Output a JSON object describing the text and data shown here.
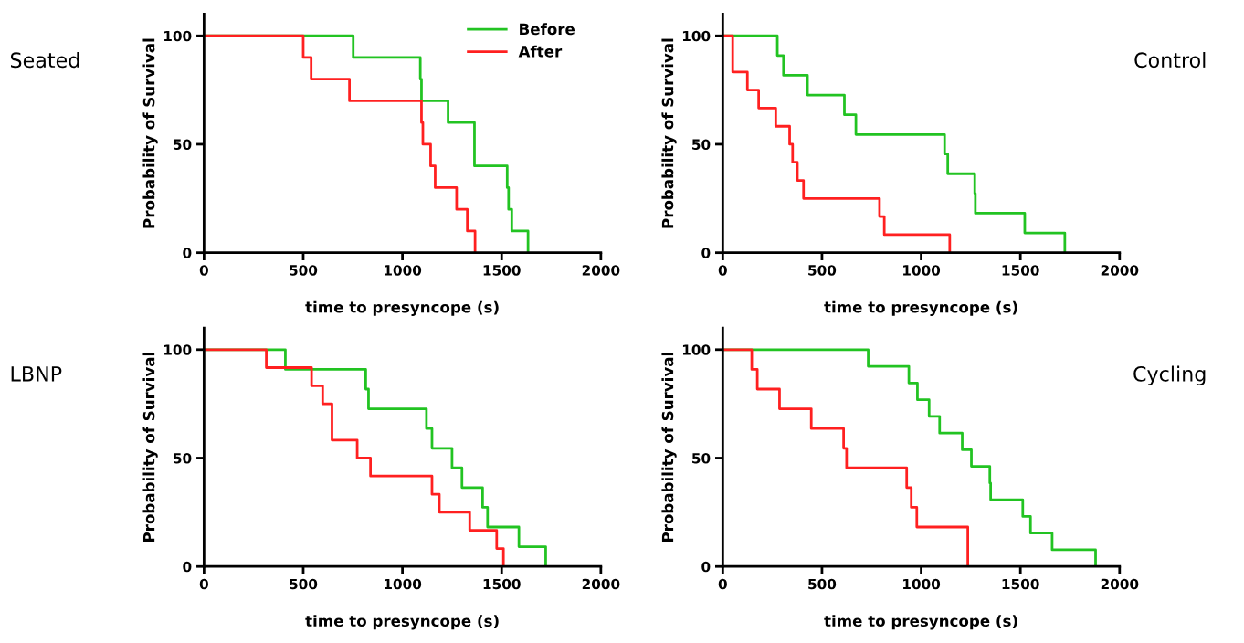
{
  "chart_data": [
    {
      "type": "step",
      "title": "Seated",
      "xlabel": "time to presyncope (s)",
      "ylabel": "Probability of Survival",
      "xlim": [
        0,
        2000
      ],
      "xticks": [
        0,
        500,
        1000,
        1500,
        2000
      ],
      "ylim": [
        0,
        110
      ],
      "yticks": [
        0,
        50,
        100
      ],
      "legend": "top right",
      "grid": false,
      "series": [
        {
          "name": "Before",
          "color": "#22c322",
          "x": [
            0,
            752,
            1090,
            1096,
            1230,
            1363,
            1528,
            1535,
            1551,
            1633
          ],
          "values": [
            100,
            90,
            80,
            70,
            60,
            40,
            30,
            20,
            10,
            0
          ]
        },
        {
          "name": "After",
          "color": "#ff2020",
          "x": [
            0,
            500,
            540,
            733,
            1096,
            1103,
            1142,
            1165,
            1273,
            1327,
            1366
          ],
          "values": [
            100,
            90,
            80,
            70,
            60,
            50,
            40,
            30,
            20,
            10,
            0
          ]
        }
      ]
    },
    {
      "type": "step",
      "title": "Control",
      "xlabel": "time to presyncope (s)",
      "ylabel": "Probability of Survival",
      "xlim": [
        0,
        2000
      ],
      "xticks": [
        0,
        500,
        1000,
        1500,
        2000
      ],
      "ylim": [
        0,
        110
      ],
      "yticks": [
        0,
        50,
        100
      ],
      "grid": false,
      "series": [
        {
          "color": "#22c322",
          "x": [
            0,
            275,
            306,
            427,
            613,
            671,
            1118,
            1134,
            1270,
            1273,
            1522,
            1724
          ],
          "values": [
            100,
            90.9,
            81.8,
            72.7,
            63.6,
            54.5,
            45.5,
            36.4,
            27.3,
            18.2,
            9.1,
            0
          ]
        },
        {
          "color": "#ff2020",
          "x": [
            0,
            50,
            124,
            181,
            267,
            337,
            352,
            376,
            407,
            790,
            814,
            1144
          ],
          "values": [
            100,
            83.3,
            75,
            66.7,
            58.3,
            50,
            41.7,
            33.3,
            25,
            16.7,
            8.3,
            0
          ]
        }
      ]
    },
    {
      "type": "step",
      "title": "LBNP",
      "xlabel": "time to presyncope (s)",
      "ylabel": "Probability of Survival",
      "xlim": [
        0,
        2000
      ],
      "xticks": [
        0,
        500,
        1000,
        1500,
        2000
      ],
      "ylim": [
        0,
        110
      ],
      "yticks": [
        0,
        50,
        100
      ],
      "grid": false,
      "series": [
        {
          "color": "#22c322",
          "x": [
            0,
            410,
            815,
            829,
            1121,
            1149,
            1250,
            1300,
            1404,
            1429,
            1587,
            1722
          ],
          "values": [
            100,
            90.9,
            81.8,
            72.7,
            63.6,
            54.5,
            45.5,
            36.4,
            27.3,
            18.2,
            9.1,
            0
          ]
        },
        {
          "color": "#ff2020",
          "x": [
            0,
            314,
            542,
            598,
            645,
            772,
            839,
            1149,
            1186,
            1339,
            1475,
            1509
          ],
          "values": [
            100,
            91.7,
            83.3,
            75,
            58.3,
            50,
            41.7,
            33.3,
            25,
            16.7,
            8.3,
            0
          ]
        }
      ]
    },
    {
      "type": "step",
      "title": "Cycling",
      "xlabel": "time to presyncope (s)",
      "ylabel": "Probability of Survival",
      "xlim": [
        0,
        2000
      ],
      "xticks": [
        0,
        500,
        1000,
        1500,
        2000
      ],
      "ylim": [
        0,
        110
      ],
      "yticks": [
        0,
        50,
        100
      ],
      "grid": false,
      "series": [
        {
          "color": "#22c322",
          "x": [
            0,
            733,
            938,
            981,
            1040,
            1093,
            1207,
            1253,
            1346,
            1350,
            1512,
            1551,
            1660,
            1879
          ],
          "values": [
            100,
            92.3,
            84.6,
            76.9,
            69.2,
            61.5,
            53.8,
            46.2,
            38.5,
            30.8,
            23.1,
            15.4,
            7.7,
            0
          ]
        },
        {
          "color": "#ff2020",
          "x": [
            0,
            146,
            174,
            286,
            446,
            609,
            624,
            927,
            950,
            978,
            1235
          ],
          "values": [
            100,
            90.9,
            81.8,
            72.7,
            63.6,
            54.5,
            45.5,
            36.4,
            27.3,
            18.2,
            0
          ]
        }
      ]
    }
  ]
}
